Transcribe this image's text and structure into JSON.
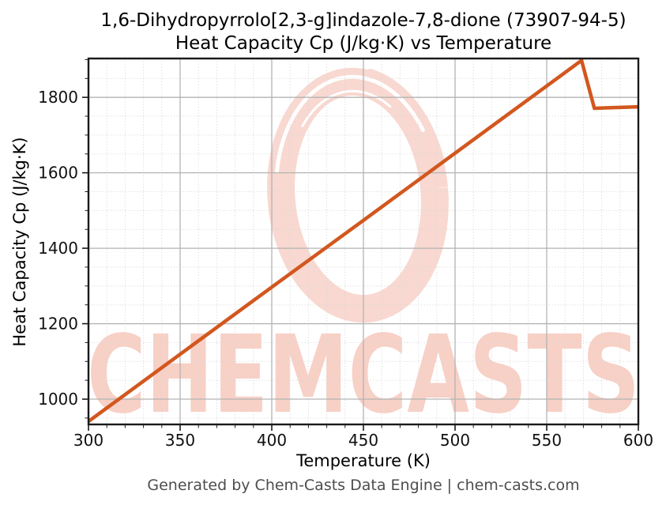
{
  "chart_data": {
    "type": "line",
    "title": "1,6-Dihydropyrrolo[2,3-g]indazole-7,8-dione (73907-94-5)",
    "subtitle": "Heat Capacity Cp (J/kg·K) vs Temperature",
    "cas_number": "73907-94-5",
    "xlabel": "Temperature (K)",
    "ylabel": "Heat Capacity Cp (J/kg·K)",
    "xlim": [
      300,
      600
    ],
    "ylim": [
      933,
      1903
    ],
    "xticks": [
      300,
      350,
      400,
      450,
      500,
      550,
      600
    ],
    "yticks": [
      1000,
      1200,
      1400,
      1600,
      1800
    ],
    "x_minor_step": 10,
    "y_minor_step": 50,
    "grid": true,
    "legend": "none",
    "series": [
      {
        "name": "Heat Capacity Cp",
        "color": "#d2571f",
        "line_width": 4.5,
        "points": [
          [
            300,
            941
          ],
          [
            350,
            1119
          ],
          [
            400,
            1297
          ],
          [
            450,
            1474
          ],
          [
            500,
            1652
          ],
          [
            550,
            1830
          ],
          [
            569,
            1898
          ],
          [
            576,
            1771
          ],
          [
            600,
            1775
          ]
        ]
      }
    ],
    "footer": "Generated by Chem-Casts Data Engine | chem-casts.com",
    "watermark": {
      "text": "CHEMCASTS",
      "text_color": "#f7d0c6",
      "swirl_color": "#f8d8d0"
    }
  },
  "colors": {
    "background": "#ffffff",
    "line": "#d2571f",
    "major_grid": "#b3b3b3",
    "minor_grid": "#dadada",
    "spine": "#1a1a1a",
    "tick_label": "#111111",
    "title": "#000000",
    "footer": "#4d4d4d"
  }
}
